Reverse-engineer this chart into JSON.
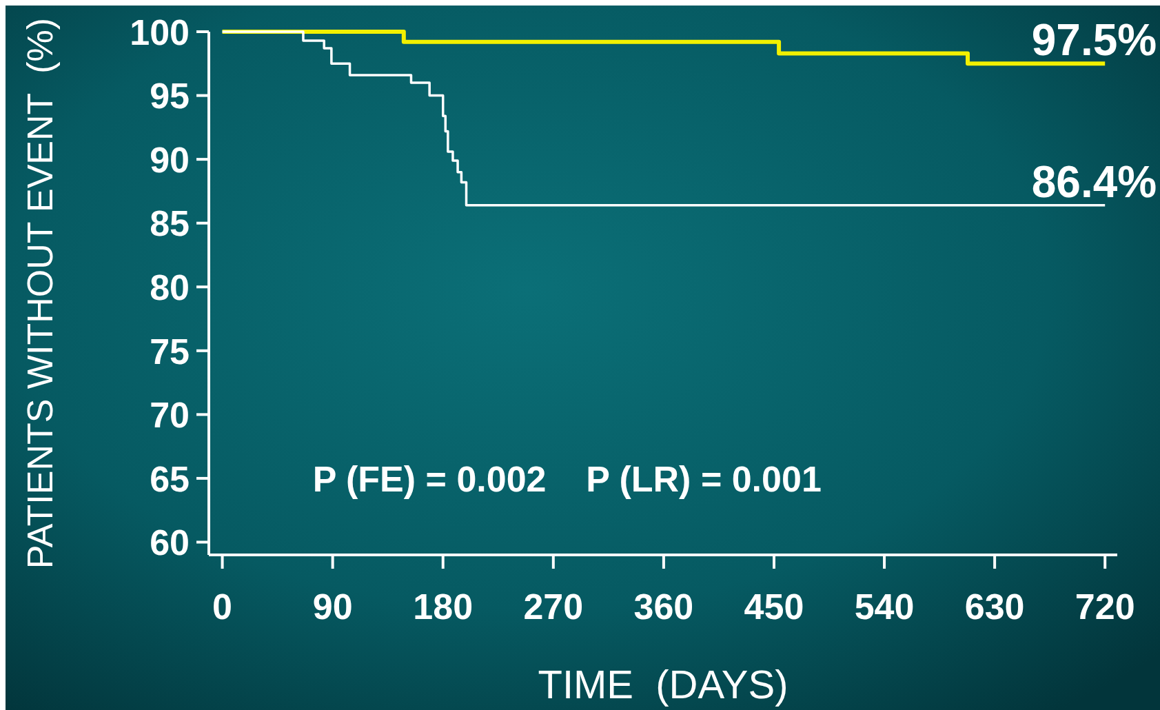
{
  "chart_data": {
    "type": "step",
    "xlabel": "TIME  (DAYS)",
    "ylabel": "PATIENTS WITHOUT EVENT  (%)",
    "xlim": [
      -11,
      730
    ],
    "ylim": [
      59,
      100
    ],
    "xticks": [
      0,
      90,
      180,
      270,
      360,
      450,
      540,
      630,
      720
    ],
    "yticks": [
      60,
      65,
      70,
      75,
      80,
      85,
      90,
      95,
      100
    ],
    "series": [
      {
        "color": "#f2f000",
        "x": [
          0,
          148,
          454,
          608,
          720
        ],
        "values": [
          100,
          99.2,
          98.3,
          97.5,
          97.5
        ]
      },
      {
        "color": "#ffffff",
        "x": [
          0,
          66,
          83,
          89,
          104,
          154,
          169,
          180,
          182,
          184,
          188,
          192,
          195,
          199,
          720
        ],
        "values": [
          100,
          99.3,
          98.7,
          97.5,
          96.6,
          96,
          95,
          93.4,
          92.2,
          90.6,
          89.9,
          89,
          88.2,
          86.4,
          86.4
        ]
      }
    ],
    "annotations": [
      {
        "text": "97.5%",
        "x": 720,
        "y": 97.5
      },
      {
        "text": "86.4%",
        "x": 720,
        "y": 86.4
      },
      "P (FE) = 0.002    P (LR) = 0.001"
    ],
    "grid": false,
    "line_style": "solid"
  }
}
